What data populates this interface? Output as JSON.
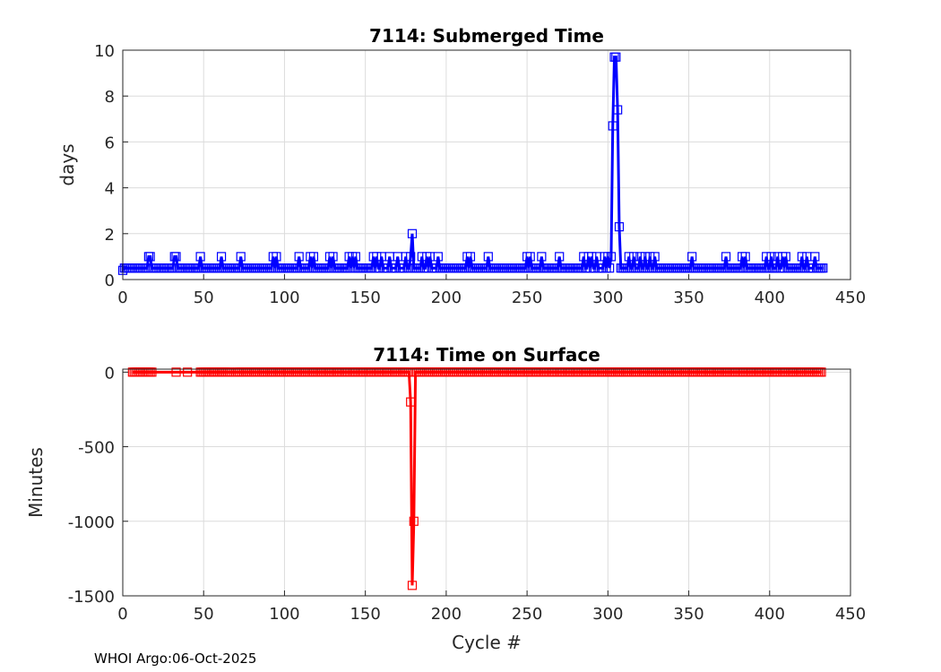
{
  "footer": "WHOI Argo:06-Oct-2025",
  "chart_data": [
    {
      "type": "line",
      "title": "7114: Submerged Time",
      "xlabel": "",
      "ylabel": "days",
      "xlim": [
        0,
        450
      ],
      "ylim": [
        0,
        10
      ],
      "xticks": [
        0,
        50,
        100,
        150,
        200,
        250,
        300,
        350,
        400,
        450
      ],
      "yticks": [
        0,
        2,
        4,
        6,
        8,
        10
      ],
      "grid": true,
      "color": "#0000ff",
      "marker": "square",
      "x_range": [
        0,
        433
      ],
      "baseline": 0.5,
      "overrides": [
        [
          0,
          0.4
        ],
        [
          16,
          1
        ],
        [
          17,
          1
        ],
        [
          32,
          1
        ],
        [
          33,
          1
        ],
        [
          48,
          1
        ],
        [
          61,
          1
        ],
        [
          73,
          1
        ],
        [
          93,
          1
        ],
        [
          95,
          1
        ],
        [
          109,
          1
        ],
        [
          116,
          1
        ],
        [
          118,
          1
        ],
        [
          128,
          1
        ],
        [
          130,
          1
        ],
        [
          140,
          1
        ],
        [
          142,
          1
        ],
        [
          144,
          1
        ],
        [
          155,
          1
        ],
        [
          157,
          1
        ],
        [
          160,
          1
        ],
        [
          165,
          1
        ],
        [
          170,
          1
        ],
        [
          175,
          1
        ],
        [
          178,
          1
        ],
        [
          179,
          2
        ],
        [
          185,
          1
        ],
        [
          188,
          1
        ],
        [
          190,
          1
        ],
        [
          195,
          1
        ],
        [
          213,
          1
        ],
        [
          215,
          1
        ],
        [
          226,
          1
        ],
        [
          250,
          1
        ],
        [
          252,
          1
        ],
        [
          259,
          1
        ],
        [
          270,
          1
        ],
        [
          285,
          1
        ],
        [
          288,
          1
        ],
        [
          290,
          1
        ],
        [
          293,
          1
        ],
        [
          298,
          1
        ],
        [
          300,
          1
        ],
        [
          302,
          1
        ],
        [
          303,
          6.7
        ],
        [
          304,
          9.7
        ],
        [
          305,
          9.7
        ],
        [
          306,
          7.4
        ],
        [
          307,
          2.3
        ],
        [
          313,
          1
        ],
        [
          316,
          1
        ],
        [
          320,
          1
        ],
        [
          323,
          1
        ],
        [
          326,
          1
        ],
        [
          329,
          1
        ],
        [
          352,
          1
        ],
        [
          373,
          1
        ],
        [
          383,
          1
        ],
        [
          385,
          1
        ],
        [
          398,
          1
        ],
        [
          401,
          1
        ],
        [
          405,
          1
        ],
        [
          408,
          1
        ],
        [
          410,
          1
        ],
        [
          420,
          1
        ],
        [
          423,
          1
        ],
        [
          428,
          1
        ]
      ]
    },
    {
      "type": "line",
      "title": "7114: Time on Surface",
      "xlabel": "Cycle #",
      "ylabel": "Minutes",
      "xlim": [
        0,
        450
      ],
      "ylim": [
        -1500,
        20
      ],
      "xticks": [
        0,
        50,
        100,
        150,
        200,
        250,
        300,
        350,
        400,
        450
      ],
      "yticks": [
        -1500,
        -1000,
        -500,
        0
      ],
      "grid": true,
      "color": "#ff0000",
      "marker": "square",
      "present_ranges": [
        [
          6,
          18
        ],
        [
          33,
          33
        ],
        [
          40,
          40
        ],
        [
          48,
          66
        ],
        [
          70,
          432
        ]
      ],
      "baseline": 0,
      "overrides": [
        [
          178,
          -200
        ],
        [
          179,
          -1430
        ],
        [
          180,
          -1000
        ]
      ]
    }
  ]
}
